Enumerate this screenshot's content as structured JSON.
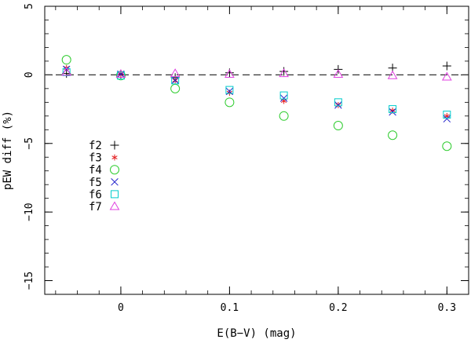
{
  "chart_data": {
    "type": "scatter",
    "xlabel": "E(B−V) (mag)",
    "ylabel": "pEW diff (%)",
    "xlim": [
      -0.07,
      0.32
    ],
    "ylim": [
      -16,
      5
    ],
    "xticks": [
      {
        "value": 0,
        "label": "0"
      },
      {
        "value": 0.1,
        "label": "0.1"
      },
      {
        "value": 0.2,
        "label": "0.2"
      },
      {
        "value": 0.3,
        "label": "0.3"
      }
    ],
    "yticks": [
      {
        "value": 5,
        "label": "5"
      },
      {
        "value": 0,
        "label": "0"
      },
      {
        "value": -5,
        "label": "−5"
      },
      {
        "value": -10,
        "label": "−10"
      },
      {
        "value": -15,
        "label": "−15"
      }
    ],
    "x_minor_step": 0.02,
    "y_minor_step": 1,
    "reference_line": {
      "y": 0,
      "style": "dashed"
    },
    "legend_position": "left-center",
    "x": [
      -0.05,
      0,
      0.05,
      0.1,
      0.15,
      0.2,
      0.25,
      0.3
    ],
    "series": [
      {
        "name": "f2",
        "marker": "plus",
        "color": "#000000",
        "values": [
          0.1,
          0.05,
          -0.2,
          0.15,
          0.25,
          0.4,
          0.5,
          0.65
        ]
      },
      {
        "name": "f3",
        "marker": "asterisk",
        "color": "#e31a1c",
        "values": [
          0.5,
          0.05,
          -0.4,
          -1.3,
          -1.9,
          -2.2,
          -2.6,
          -3.0
        ]
      },
      {
        "name": "f4",
        "marker": "circle",
        "color": "#2ecc2e",
        "values": [
          1.1,
          -0.05,
          -1.0,
          -2.0,
          -3.0,
          -3.7,
          -4.4,
          -5.2
        ]
      },
      {
        "name": "f5",
        "marker": "cross",
        "color": "#2222cc",
        "values": [
          0.4,
          0.05,
          -0.4,
          -1.2,
          -1.7,
          -2.2,
          -2.7,
          -3.2
        ]
      },
      {
        "name": "f6",
        "marker": "square",
        "color": "#00cccc",
        "values": [
          0.2,
          -0.05,
          -0.4,
          -1.1,
          -1.5,
          -2.0,
          -2.5,
          -2.9
        ]
      },
      {
        "name": "f7",
        "marker": "triangle",
        "color": "#e040e0",
        "values": [
          0.2,
          0.05,
          0.1,
          0.05,
          0.1,
          0.05,
          -0.05,
          -0.15
        ]
      }
    ]
  }
}
